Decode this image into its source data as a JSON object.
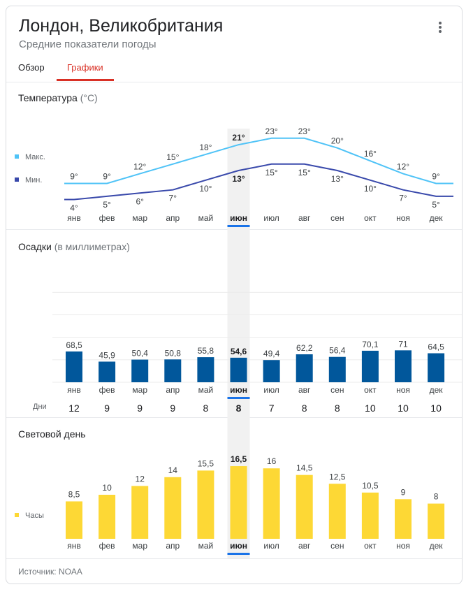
{
  "header": {
    "title": "Лондон, Великобритания",
    "subtitle": "Средние показатели погоды",
    "menu_icon": "more-vert-icon"
  },
  "tabs": [
    {
      "label": "Обзор",
      "active": false
    },
    {
      "label": "Графики",
      "active": true
    }
  ],
  "months": [
    "янв",
    "фев",
    "мар",
    "апр",
    "май",
    "июн",
    "июл",
    "авг",
    "сен",
    "окт",
    "ноя",
    "дек"
  ],
  "highlighted_month_index": 5,
  "temperature": {
    "title": "Температура",
    "unit": "(°C)",
    "legend_max": "Макс.",
    "legend_min": "Мин.",
    "max_labels": [
      "9°",
      "9°",
      "12°",
      "15°",
      "18°",
      "21°",
      "23°",
      "23°",
      "20°",
      "16°",
      "12°",
      "9°"
    ],
    "min_labels": [
      "4°",
      "5°",
      "6°",
      "7°",
      "10°",
      "13°",
      "15°",
      "15°",
      "13°",
      "10°",
      "7°",
      "5°"
    ]
  },
  "precipitation": {
    "title": "Осадки",
    "unit": "(в миллиметрах)",
    "labels": [
      "68,5",
      "45,9",
      "50,4",
      "50,8",
      "55,8",
      "54,6",
      "49,4",
      "62,2",
      "56,4",
      "70,1",
      "71",
      "64,5"
    ],
    "days_label": "Дни",
    "days": [
      "12",
      "9",
      "9",
      "9",
      "8",
      "8",
      "7",
      "8",
      "8",
      "10",
      "10",
      "10"
    ]
  },
  "daylight": {
    "title": "Световой день",
    "legend": "Часы",
    "labels": [
      "8,5",
      "10",
      "12",
      "14",
      "15,5",
      "16,5",
      "16",
      "14,5",
      "12,5",
      "10,5",
      "9",
      "8"
    ]
  },
  "footer": {
    "source": "Источник: NOAA"
  },
  "colors": {
    "max_line": "#4fc3f7",
    "min_line": "#3949ab",
    "precip_bar": "#01579b",
    "daylight_bar": "#fdd835",
    "highlight_band": "#f1f1f1",
    "month_indicator": "#1a73e8"
  },
  "chart_data": [
    {
      "type": "line",
      "title": "Температура",
      "categories": [
        "янв",
        "фев",
        "мар",
        "апр",
        "май",
        "июн",
        "июл",
        "авг",
        "сен",
        "окт",
        "ноя",
        "дек"
      ],
      "series": [
        {
          "name": "Макс.",
          "values": [
            9,
            9,
            12,
            15,
            18,
            21,
            23,
            23,
            20,
            16,
            12,
            9
          ]
        },
        {
          "name": "Мин.",
          "values": [
            4,
            5,
            6,
            7,
            10,
            13,
            15,
            15,
            13,
            10,
            7,
            5
          ]
        }
      ],
      "ylim": [
        0,
        26
      ],
      "grid": false,
      "legend": "left"
    },
    {
      "type": "bar",
      "title": "Осадки",
      "categories": [
        "янв",
        "фев",
        "мар",
        "апр",
        "май",
        "июн",
        "июл",
        "авг",
        "сен",
        "окт",
        "ноя",
        "дек"
      ],
      "values": [
        68.5,
        45.9,
        50.4,
        50.8,
        55.8,
        54.6,
        49.4,
        62.2,
        56.4,
        70.1,
        71,
        64.5
      ],
      "ylim": [
        0,
        300
      ],
      "grid": true
    },
    {
      "type": "bar",
      "title": "Световой день",
      "categories": [
        "янв",
        "фев",
        "мар",
        "апр",
        "май",
        "июн",
        "июл",
        "авг",
        "сен",
        "окт",
        "ноя",
        "дек"
      ],
      "series": [
        {
          "name": "Часы",
          "values": [
            8.5,
            10,
            12,
            14,
            15.5,
            16.5,
            16,
            14.5,
            12.5,
            10.5,
            9,
            8
          ]
        }
      ],
      "ylim": [
        0,
        18
      ],
      "grid": false,
      "legend": "left"
    }
  ]
}
